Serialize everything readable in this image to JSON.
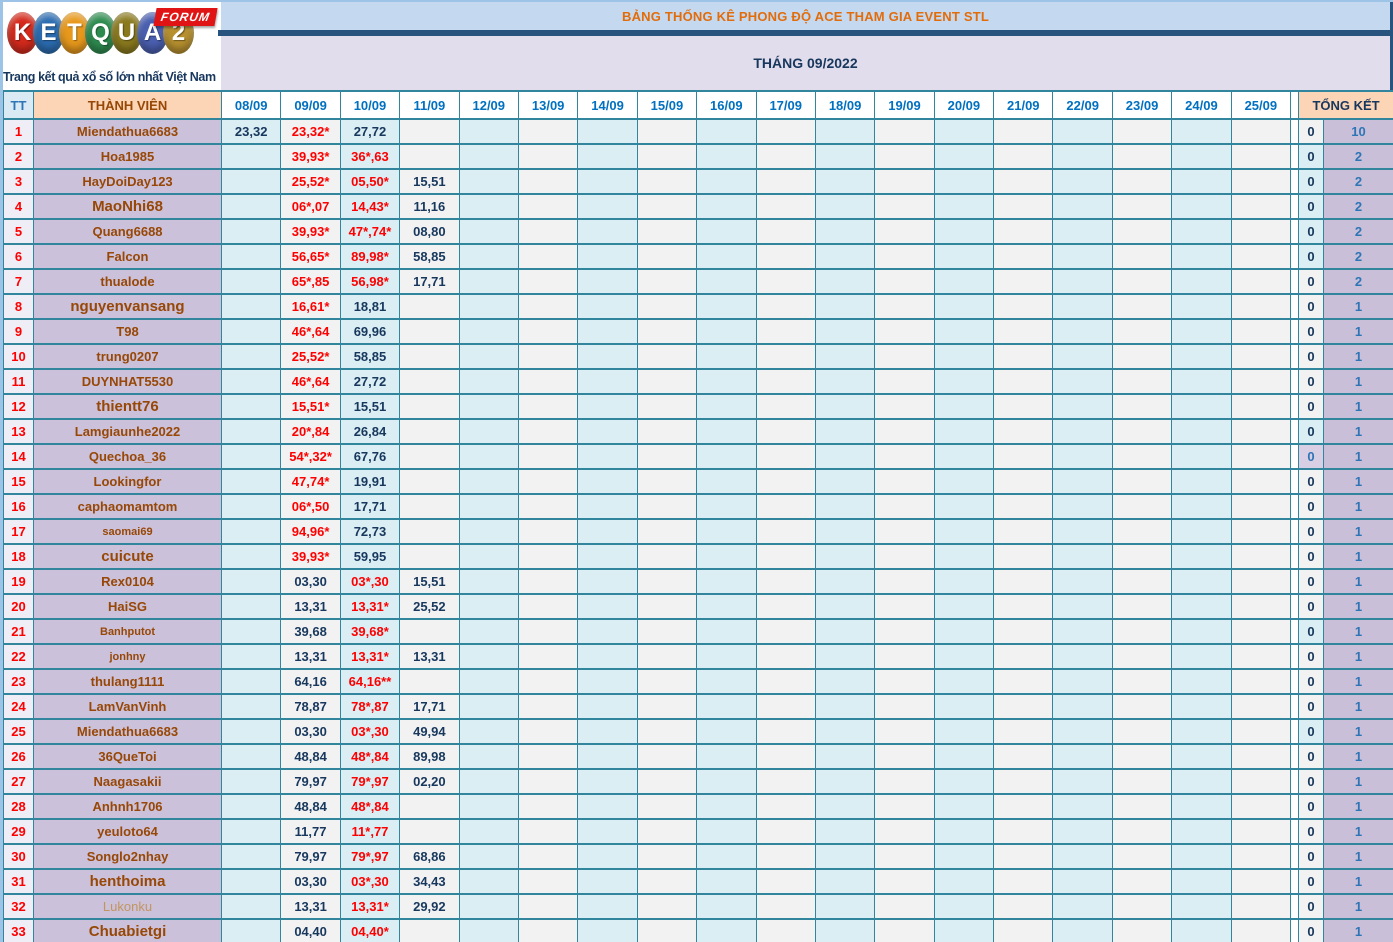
{
  "logo": {
    "letters": [
      {
        "ch": "K",
        "color": "#d42a1c"
      },
      {
        "ch": "E",
        "color": "#2b6cb0"
      },
      {
        "ch": "T",
        "color": "#e8991c"
      },
      {
        "ch": "Q",
        "color": "#2e8b4f"
      },
      {
        "ch": "U",
        "color": "#8a7a1e"
      },
      {
        "ch": "A",
        "color": "#4a5fb0"
      },
      {
        "ch": "2",
        "color": "#b8912f"
      }
    ],
    "forum_label": "FORUM",
    "tagline": "Trang kết quả xổ số lớn nhất Việt Nam"
  },
  "header": {
    "title": "BẢNG THỐNG KÊ PHONG ĐỘ ACE THAM GIA EVENT STL",
    "month": "THÁNG 09/2022"
  },
  "colors": {
    "grid_teal": "#31859c",
    "title_bar_bg": "#c4d9f0",
    "title_text": "#e36c0a",
    "month_band_bg": "#e2ddec",
    "navy_value": "#17375d",
    "red_value": "#ff0000",
    "member_name": "#974706",
    "member_bg": "#ccc1da",
    "date_cyan_bg": "#daeef3",
    "date_gray_bg": "#f2f2f2",
    "header_peach_bg": "#fbd5b5",
    "total_blue": "#2e75b6"
  },
  "table": {
    "tt_header": "TT",
    "member_header": "THÀNH VIÊN",
    "total_header": "TỔNG KẾT",
    "dates": [
      "08/09",
      "09/09",
      "10/09",
      "11/09",
      "12/09",
      "13/09",
      "14/09",
      "15/09",
      "16/09",
      "17/09",
      "18/09",
      "19/09",
      "20/09",
      "21/09",
      "22/09",
      "23/09",
      "24/09",
      "25/09"
    ],
    "rows": [
      {
        "tt": "1",
        "name": "Miendathua6683",
        "style": "normal",
        "cells": {
          "d0809": [
            "23,32",
            "n"
          ],
          "d0909": [
            "23,32*",
            "r"
          ],
          "d1009": [
            "27,72",
            "n"
          ]
        },
        "zero": "0",
        "zero_bg": "gray",
        "zero_style": "dark",
        "total": "10"
      },
      {
        "tt": "2",
        "name": "Hoa1985",
        "style": "normal",
        "cells": {
          "d0909": [
            "39,93*",
            "r"
          ],
          "d1009": [
            "36*,63",
            "r"
          ]
        },
        "zero": "0",
        "zero_bg": "cyan",
        "zero_style": "dark",
        "total": "2"
      },
      {
        "tt": "3",
        "name": "HayDoiDay123",
        "style": "normal",
        "cells": {
          "d0909": [
            "25,52*",
            "r"
          ],
          "d1009": [
            "05,50*",
            "r"
          ],
          "d1109": [
            "15,51",
            "n"
          ]
        },
        "zero": "0",
        "zero_bg": "cyan",
        "zero_style": "dark",
        "total": "2"
      },
      {
        "tt": "4",
        "name": "MaoNhi68",
        "style": "large",
        "cells": {
          "d0909": [
            "06*,07",
            "r"
          ],
          "d1009": [
            "14,43*",
            "r"
          ],
          "d1109": [
            "11,16",
            "n"
          ]
        },
        "zero": "0",
        "zero_bg": "cyan",
        "zero_style": "dark",
        "total": "2"
      },
      {
        "tt": "5",
        "name": "Quang6688",
        "style": "normal",
        "cells": {
          "d0909": [
            "39,93*",
            "r"
          ],
          "d1009": [
            "47*,74*",
            "r"
          ],
          "d1109": [
            "08,80",
            "n"
          ]
        },
        "zero": "0",
        "zero_bg": "cyan",
        "zero_style": "dark",
        "total": "2"
      },
      {
        "tt": "6",
        "name": "Falcon",
        "style": "normal",
        "cells": {
          "d0909": [
            "56,65*",
            "r"
          ],
          "d1009": [
            "89,98*",
            "r"
          ],
          "d1109": [
            "58,85",
            "n"
          ]
        },
        "zero": "0",
        "zero_bg": "cyan",
        "zero_style": "dark",
        "total": "2"
      },
      {
        "tt": "7",
        "name": "thualode",
        "style": "normal",
        "cells": {
          "d0909": [
            "65*,85",
            "r"
          ],
          "d1009": [
            "56,98*",
            "r"
          ],
          "d1109": [
            "17,71",
            "n"
          ]
        },
        "zero": "0",
        "zero_bg": "gray",
        "zero_style": "dark",
        "total": "2"
      },
      {
        "tt": "8",
        "name": "nguyenvansang",
        "style": "large",
        "cells": {
          "d0909": [
            "16,61*",
            "r"
          ],
          "d1009": [
            "18,81",
            "n"
          ]
        },
        "zero": "0",
        "zero_bg": "gray",
        "zero_style": "dark",
        "total": "1"
      },
      {
        "tt": "9",
        "name": "T98",
        "style": "normal",
        "cells": {
          "d0909": [
            "46*,64",
            "r"
          ],
          "d1009": [
            "69,96",
            "n"
          ]
        },
        "zero": "0",
        "zero_bg": "gray",
        "zero_style": "dark",
        "total": "1"
      },
      {
        "tt": "10",
        "name": "trung0207",
        "style": "normal",
        "cells": {
          "d0909": [
            "25,52*",
            "r"
          ],
          "d1009": [
            "58,85",
            "n"
          ]
        },
        "zero": "0",
        "zero_bg": "gray",
        "zero_style": "dark",
        "total": "1"
      },
      {
        "tt": "11",
        "name": "DUYNHAT5530",
        "style": "normal",
        "cells": {
          "d0909": [
            "46*,64",
            "r"
          ],
          "d1009": [
            "27,72",
            "n"
          ]
        },
        "zero": "0",
        "zero_bg": "gray",
        "zero_style": "dark",
        "total": "1"
      },
      {
        "tt": "12",
        "name": "thientt76",
        "style": "large",
        "cells": {
          "d0909": [
            "15,51*",
            "r"
          ],
          "d1009": [
            "15,51",
            "n"
          ]
        },
        "zero": "0",
        "zero_bg": "gray",
        "zero_style": "dark",
        "total": "1"
      },
      {
        "tt": "13",
        "name": "Lamgiaunhe2022",
        "style": "normal",
        "cells": {
          "d0909": [
            "20*,84",
            "r"
          ],
          "d1009": [
            "26,84",
            "n"
          ]
        },
        "zero": "0",
        "zero_bg": "cyan",
        "zero_style": "dark",
        "total": "1"
      },
      {
        "tt": "14",
        "name": "Quechoa_36",
        "style": "normal",
        "cells": {
          "d0909": [
            "54*,32*",
            "r"
          ],
          "d1009": [
            "67,76",
            "n"
          ]
        },
        "zero": "0",
        "zero_bg": "lav",
        "zero_style": "blue",
        "total": "1"
      },
      {
        "tt": "15",
        "name": "Lookingfor",
        "style": "normal",
        "cells": {
          "d0909": [
            "47,74*",
            "r"
          ],
          "d1009": [
            "19,91",
            "n"
          ]
        },
        "zero": "0",
        "zero_bg": "gray",
        "zero_style": "dark",
        "total": "1"
      },
      {
        "tt": "16",
        "name": "caphaomamtom",
        "style": "normal",
        "cells": {
          "d0909": [
            "06*,50",
            "r"
          ],
          "d1009": [
            "17,71",
            "n"
          ]
        },
        "zero": "0",
        "zero_bg": "gray",
        "zero_style": "dark",
        "total": "1"
      },
      {
        "tt": "17",
        "name": "saomai69",
        "style": "small",
        "cells": {
          "d0909": [
            "94,96*",
            "r"
          ],
          "d1009": [
            "72,73",
            "n"
          ]
        },
        "zero": "0",
        "zero_bg": "gray",
        "zero_style": "dark",
        "total": "1"
      },
      {
        "tt": "18",
        "name": "cuicute",
        "style": "large",
        "cells": {
          "d0909": [
            "39,93*",
            "r"
          ],
          "d1009": [
            "59,95",
            "n"
          ]
        },
        "zero": "0",
        "zero_bg": "gray",
        "zero_style": "dark",
        "total": "1"
      },
      {
        "tt": "19",
        "name": "Rex0104",
        "style": "normal",
        "cells": {
          "d0909": [
            "03,30",
            "n"
          ],
          "d1009": [
            "03*,30",
            "r"
          ],
          "d1109": [
            "15,51",
            "n"
          ]
        },
        "zero": "0",
        "zero_bg": "gray",
        "zero_style": "dark",
        "total": "1"
      },
      {
        "tt": "20",
        "name": "HaiSG",
        "style": "normal",
        "cells": {
          "d0909": [
            "13,31",
            "n"
          ],
          "d1009": [
            "13,31*",
            "r"
          ],
          "d1109": [
            "25,52",
            "n"
          ]
        },
        "zero": "0",
        "zero_bg": "gray",
        "zero_style": "dark",
        "total": "1"
      },
      {
        "tt": "21",
        "name": "Banhputot",
        "style": "small",
        "cells": {
          "d0909": [
            "39,68",
            "n"
          ],
          "d1009": [
            "39,68*",
            "r"
          ]
        },
        "zero": "0",
        "zero_bg": "cyan",
        "zero_style": "dark",
        "total": "1"
      },
      {
        "tt": "22",
        "name": "jonhny",
        "style": "small",
        "cells": {
          "d0909": [
            "13,31",
            "n"
          ],
          "d1009": [
            "13,31*",
            "r"
          ],
          "d1109": [
            "13,31",
            "n"
          ]
        },
        "zero": "0",
        "zero_bg": "gray",
        "zero_style": "dark",
        "total": "1"
      },
      {
        "tt": "23",
        "name": "thulang1111",
        "style": "normal",
        "cells": {
          "d0909": [
            "64,16",
            "n"
          ],
          "d1009": [
            "64,16**",
            "r"
          ]
        },
        "zero": "0",
        "zero_bg": "gray",
        "zero_style": "dark",
        "total": "1"
      },
      {
        "tt": "24",
        "name": "LamVanVinh",
        "style": "normal",
        "cells": {
          "d0909": [
            "78,87",
            "n"
          ],
          "d1009": [
            "78*,87",
            "r"
          ],
          "d1109": [
            "17,71",
            "n"
          ]
        },
        "zero": "0",
        "zero_bg": "gray",
        "zero_style": "dark",
        "total": "1"
      },
      {
        "tt": "25",
        "name": "Miendathua6683",
        "style": "normal",
        "cells": {
          "d0909": [
            "03,30",
            "n"
          ],
          "d1009": [
            "03*,30",
            "r"
          ],
          "d1109": [
            "49,94",
            "n"
          ]
        },
        "zero": "0",
        "zero_bg": "cyan",
        "zero_style": "dark",
        "total": "1"
      },
      {
        "tt": "26",
        "name": "36QueToi",
        "style": "normal",
        "cells": {
          "d0909": [
            "48,84",
            "n"
          ],
          "d1009": [
            "48*,84",
            "r"
          ],
          "d1109": [
            "89,98",
            "n"
          ]
        },
        "zero": "0",
        "zero_bg": "gray",
        "zero_style": "dark",
        "total": "1"
      },
      {
        "tt": "27",
        "name": "Naagasakii",
        "style": "normal",
        "cells": {
          "d0909": [
            "79,97",
            "n"
          ],
          "d1009": [
            "79*,97",
            "r"
          ],
          "d1109": [
            "02,20",
            "n"
          ]
        },
        "zero": "0",
        "zero_bg": "gray",
        "zero_style": "dark",
        "total": "1"
      },
      {
        "tt": "28",
        "name": "Anhnh1706",
        "style": "normal",
        "cells": {
          "d0909": [
            "48,84",
            "n"
          ],
          "d1009": [
            "48*,84",
            "r"
          ]
        },
        "zero": "0",
        "zero_bg": "gray",
        "zero_style": "dark",
        "total": "1"
      },
      {
        "tt": "29",
        "name": "yeuloto64",
        "style": "normal",
        "cells": {
          "d0909": [
            "11,77",
            "n"
          ],
          "d1009": [
            "11*,77",
            "r"
          ]
        },
        "zero": "0",
        "zero_bg": "gray",
        "zero_style": "dark",
        "total": "1"
      },
      {
        "tt": "30",
        "name": "Songlo2nhay",
        "style": "normal",
        "cells": {
          "d0909": [
            "79,97",
            "n"
          ],
          "d1009": [
            "79*,97",
            "r"
          ],
          "d1109": [
            "68,86",
            "n"
          ]
        },
        "zero": "0",
        "zero_bg": "gray",
        "zero_style": "dark",
        "total": "1"
      },
      {
        "tt": "31",
        "name": "henthoima",
        "style": "large",
        "cells": {
          "d0909": [
            "03,30",
            "n"
          ],
          "d1009": [
            "03*,30",
            "r"
          ],
          "d1109": [
            "34,43",
            "n"
          ]
        },
        "zero": "0",
        "zero_bg": "gray",
        "zero_style": "dark",
        "total": "1"
      },
      {
        "tt": "32",
        "name": "Lukonku",
        "style": "muted",
        "cells": {
          "d0909": [
            "13,31",
            "n"
          ],
          "d1009": [
            "13,31*",
            "r"
          ],
          "d1109": [
            "29,92",
            "n"
          ]
        },
        "zero": "0",
        "zero_bg": "gray",
        "zero_style": "dark",
        "total": "1"
      },
      {
        "tt": "33",
        "name": "Chuabietgi",
        "style": "large",
        "cells": {
          "d0909": [
            "04,40",
            "n"
          ],
          "d1009": [
            "04,40*",
            "r"
          ]
        },
        "zero": "0",
        "zero_bg": "gray",
        "zero_style": "dark",
        "total": "1"
      }
    ]
  }
}
